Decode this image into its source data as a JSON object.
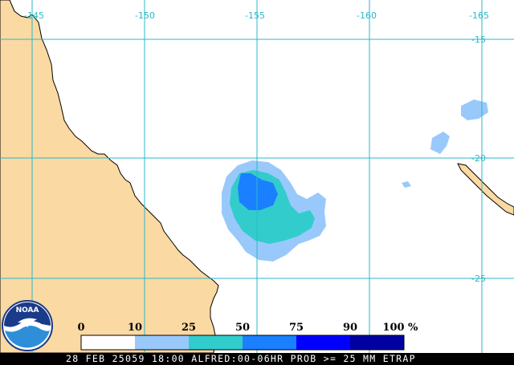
{
  "map": {
    "longitude_labels": [
      "-145",
      "-150",
      "-155",
      "-160",
      "-165"
    ],
    "latitude_labels": [
      "-15",
      "-20",
      "-25"
    ],
    "colors": {
      "land": "#fbd9a2",
      "ocean": "#ffffff",
      "graticule": "#2ab8c8",
      "coast": "#000000"
    }
  },
  "legend": {
    "labels": [
      "0",
      "10",
      "25",
      "50",
      "75",
      "90",
      "100"
    ],
    "unit": "%",
    "swatches": [
      "#ffffff",
      "#99c9fb",
      "#33cccc",
      "#1a80ff",
      "#0000ff",
      "#0000a0"
    ]
  },
  "logo": {
    "text": "NOAA"
  },
  "footer": {
    "caption": "28 FEB 25059 18:00 ALFRED:00-06HR PROB >= 25 MM ETRAP"
  }
}
